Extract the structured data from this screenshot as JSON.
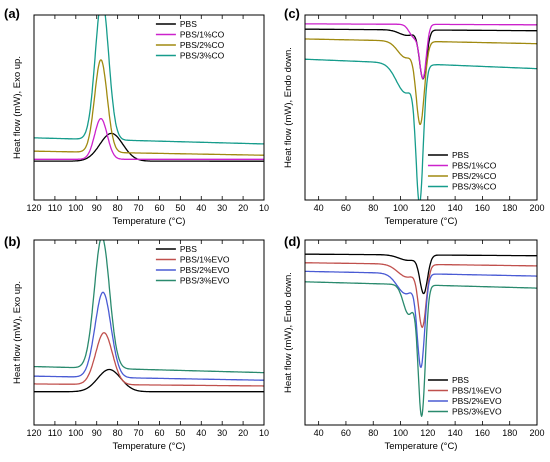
{
  "chart_data": [
    {
      "panel": "(a)",
      "type": "line",
      "xlabel": "Temperature (°C)",
      "ylabel": "Heat flow (mW), Exo up.",
      "xlim": [
        120,
        10
      ],
      "xticks": [
        120,
        110,
        100,
        90,
        80,
        70,
        60,
        50,
        40,
        30,
        20,
        10
      ],
      "ylim": [
        0,
        100
      ],
      "yticks_shown": false,
      "legend": "top-right",
      "series": [
        {
          "name": "PBS",
          "color": "#000000",
          "base": 21,
          "peaks": [
            {
              "x": 83,
              "h": 15,
              "w": 5.5
            }
          ],
          "slope": 0.0
        },
        {
          "name": "PBS/1%CO",
          "color": "#cc22cc",
          "base": 22,
          "peaks": [
            {
              "x": 88,
              "h": 22,
              "w": 3.0
            }
          ],
          "slope": 0.0
        },
        {
          "name": "PBS/2%CO",
          "color": "#a08a10",
          "base": 26,
          "peaks": [
            {
              "x": 88,
              "h": 50,
              "w": 3.0
            }
          ],
          "slope": 0.02
        },
        {
          "name": "PBS/3%CO",
          "color": "#169c8c",
          "base": 33,
          "peaks": [
            {
              "x": 87.5,
              "h": 76,
              "w": 3.2
            }
          ],
          "slope": 0.03
        }
      ]
    },
    {
      "panel": "(b)",
      "type": "line",
      "xlabel": "Temperature (°C)",
      "ylabel": "Heat flow (mW), Exo up.",
      "xlim": [
        120,
        10
      ],
      "xticks": [
        120,
        110,
        100,
        90,
        80,
        70,
        60,
        50,
        40,
        30,
        20,
        10
      ],
      "ylim": [
        0,
        100
      ],
      "yticks_shown": false,
      "legend": "top-right",
      "series": [
        {
          "name": "PBS",
          "color": "#000000",
          "base": 18,
          "peaks": [
            {
              "x": 84,
              "h": 12,
              "w": 5.5
            }
          ],
          "slope": 0.0
        },
        {
          "name": "PBS/1%EVO",
          "color": "#c0504d",
          "base": 22,
          "peaks": [
            {
              "x": 86.5,
              "h": 28,
              "w": 4.0
            }
          ],
          "slope": 0.01
        },
        {
          "name": "PBS/2%EVO",
          "color": "#4a5bd4",
          "base": 26,
          "peaks": [
            {
              "x": 87,
              "h": 46,
              "w": 3.8
            }
          ],
          "slope": 0.02
        },
        {
          "name": "PBS/3%EVO",
          "color": "#2a8a6e",
          "base": 31,
          "peaks": [
            {
              "x": 87.5,
              "h": 71,
              "w": 3.6
            }
          ],
          "slope": 0.03
        }
      ]
    },
    {
      "panel": "(c)",
      "type": "line",
      "xlabel": "Temperature (°C)",
      "ylabel": "Heat flow (mW), Endo down.",
      "xlim": [
        30,
        200
      ],
      "xticks": [
        40,
        60,
        80,
        100,
        120,
        140,
        160,
        180,
        200
      ],
      "ylim": [
        0,
        100
      ],
      "yticks_shown": false,
      "legend": "bottom-right",
      "series": [
        {
          "name": "PBS",
          "color": "#000000",
          "base": 92,
          "peaks": [
            {
              "x": 116.5,
              "h": -26,
              "w": 2.6
            },
            {
              "x": 105,
              "h": -3,
              "w": 6
            }
          ],
          "slope": -0.005
        },
        {
          "name": "PBS/1%CO",
          "color": "#cc22cc",
          "base": 95,
          "peaks": [
            {
              "x": 116.5,
              "h": -28,
              "w": 2.4
            },
            {
              "x": 110,
              "h": -7,
              "w": 3.5
            }
          ],
          "slope": -0.003
        },
        {
          "name": "PBS/2%CO",
          "color": "#a08a10",
          "base": 86,
          "peaks": [
            {
              "x": 114.5,
              "h": -43,
              "w": 3.0
            },
            {
              "x": 104,
              "h": -9,
              "w": 6
            }
          ],
          "slope": -0.015
        },
        {
          "name": "PBS/3%CO",
          "color": "#169c8c",
          "base": 74,
          "peaks": [
            {
              "x": 114,
              "h": -70,
              "w": 2.6
            },
            {
              "x": 104,
              "h": -16,
              "w": 7
            }
          ],
          "slope": -0.03
        }
      ]
    },
    {
      "panel": "(d)",
      "type": "line",
      "xlabel": "Temperature (°C)",
      "ylabel": "Heat flow (mW), Endo down.",
      "xlim": [
        30,
        200
      ],
      "xticks": [
        40,
        60,
        80,
        100,
        120,
        140,
        160,
        180,
        200
      ],
      "ylim": [
        0,
        100
      ],
      "yticks_shown": false,
      "legend": "bottom-right",
      "series": [
        {
          "name": "PBS",
          "color": "#000000",
          "base": 92,
          "peaks": [
            {
              "x": 117,
              "h": -20,
              "w": 2.8
            },
            {
              "x": 106,
              "h": -3,
              "w": 7
            }
          ],
          "slope": -0.005
        },
        {
          "name": "PBS/1%EVO",
          "color": "#c0504d",
          "base": 87,
          "peaks": [
            {
              "x": 116,
              "h": -32,
              "w": 2.8
            },
            {
              "x": 105,
              "h": -7,
              "w": 7
            }
          ],
          "slope": -0.01
        },
        {
          "name": "PBS/2%EVO",
          "color": "#4a5bd4",
          "base": 82,
          "peaks": [
            {
              "x": 115,
              "h": -48,
              "w": 2.7
            },
            {
              "x": 104,
              "h": -11,
              "w": 6.5
            }
          ],
          "slope": -0.015
        },
        {
          "name": "PBS/3%EVO",
          "color": "#2a8a6e",
          "base": 76,
          "peaks": [
            {
              "x": 115.5,
              "h": -70,
              "w": 2.6
            },
            {
              "x": 106,
              "h": -16,
              "w": 4.0
            }
          ],
          "slope": -0.02
        }
      ]
    }
  ]
}
